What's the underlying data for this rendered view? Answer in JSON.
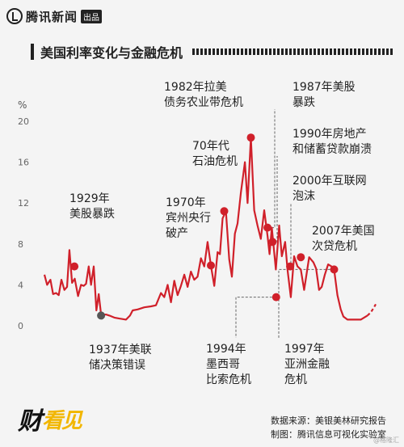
{
  "header": {
    "brand_name": "腾讯新闻",
    "brand_tag": "出品",
    "brand_icon": "tencent-news-logo-icon"
  },
  "chart_data": {
    "type": "line",
    "title": "美国利率变化与金融危机",
    "ylabel": "%",
    "ylim": [
      0,
      20
    ],
    "yticks": [
      0,
      4,
      8,
      12,
      16,
      20
    ],
    "grid": false,
    "line_color": "#d0202a",
    "marker_color": "#d0202a",
    "series": [
      {
        "values": [
          [
            1920,
            5.0
          ],
          [
            1920.8,
            4.0
          ],
          [
            1921.8,
            4.5
          ],
          [
            1922.6,
            3.1
          ],
          [
            1923.5,
            3.2
          ],
          [
            1924.3,
            3.0
          ],
          [
            1925.1,
            4.5
          ],
          [
            1926.0,
            3.5
          ],
          [
            1926.8,
            3.8
          ],
          [
            1927.5,
            7.4
          ],
          [
            1928.3,
            4.2
          ],
          [
            1929.1,
            4.6
          ],
          [
            1930.1,
            2.9
          ],
          [
            1931.0,
            4.0
          ],
          [
            1931.8,
            3.9
          ],
          [
            1932.5,
            4.1
          ],
          [
            1933.3,
            5.8
          ],
          [
            1934.0,
            4.0
          ],
          [
            1934.8,
            5.8
          ],
          [
            1935.6,
            1.5
          ],
          [
            1936.3,
            3.1
          ],
          [
            1937.0,
            1.1
          ],
          [
            1937.8,
            1.1
          ],
          [
            1938.5,
            1.1
          ],
          [
            1939.5,
            1.0
          ],
          [
            1941.0,
            0.8
          ],
          [
            1942.5,
            0.7
          ],
          [
            1944.5,
            0.6
          ],
          [
            1945.7,
            1.0
          ],
          [
            1946.5,
            1.5
          ],
          [
            1948.0,
            1.6
          ],
          [
            1950.0,
            1.8
          ],
          [
            1952.0,
            1.9
          ],
          [
            1953.5,
            2.0
          ],
          [
            1955.0,
            3.2
          ],
          [
            1956.0,
            2.8
          ],
          [
            1957.0,
            4.0
          ],
          [
            1958.0,
            2.3
          ],
          [
            1959.0,
            4.4
          ],
          [
            1960.0,
            3.0
          ],
          [
            1961.0,
            3.9
          ],
          [
            1962.0,
            5.0
          ],
          [
            1963.0,
            3.8
          ],
          [
            1964.0,
            5.3
          ],
          [
            1965.0,
            4.5
          ],
          [
            1966.0,
            4.8
          ],
          [
            1967.0,
            6.6
          ],
          [
            1968.0,
            5.8
          ],
          [
            1969.0,
            8.2
          ],
          [
            1970.0,
            5.9
          ],
          [
            1971.0,
            3.9
          ],
          [
            1972.0,
            7.2
          ],
          [
            1972.7,
            7.0
          ],
          [
            1973.5,
            10.5
          ],
          [
            1974.5,
            11.2
          ],
          [
            1975.5,
            6.5
          ],
          [
            1976.3,
            4.8
          ],
          [
            1977.2,
            9.0
          ],
          [
            1978.0,
            10.0
          ],
          [
            1979.0,
            13.0
          ],
          [
            1980.2,
            16.0
          ],
          [
            1981.0,
            12.0
          ],
          [
            1982.0,
            18.4
          ],
          [
            1983.0,
            11.3
          ],
          [
            1984.0,
            9.8
          ],
          [
            1985.0,
            8.5
          ],
          [
            1986.0,
            11.3
          ],
          [
            1987.0,
            8.8
          ],
          [
            1987.6,
            7.0
          ],
          [
            1988.3,
            9.6
          ],
          [
            1989.5,
            5.5
          ],
          [
            1990.5,
            9.8
          ],
          [
            1991.3,
            6.8
          ],
          [
            1992.3,
            8.2
          ],
          [
            1993.0,
            5.5
          ],
          [
            1994.0,
            2.8
          ],
          [
            1995.0,
            6.8
          ],
          [
            1996.0,
            5.8
          ],
          [
            1997.0,
            5.5
          ],
          [
            1998.0,
            3.5
          ],
          [
            1998.8,
            5.2
          ],
          [
            1999.5,
            6.7
          ],
          [
            2000.8,
            6.2
          ],
          [
            2001.6,
            5.6
          ],
          [
            2002.5,
            3.5
          ],
          [
            2003.3,
            3.8
          ],
          [
            2004.2,
            5.0
          ],
          [
            2005.2,
            6.0
          ],
          [
            2006.2,
            5.8
          ],
          [
            2007.0,
            5.5
          ],
          [
            2008.0,
            3.0
          ],
          [
            2009.0,
            1.6
          ],
          [
            2009.8,
            0.9
          ],
          [
            2011.0,
            0.6
          ],
          [
            2013.0,
            0.6
          ],
          [
            2015.0,
            0.6
          ],
          [
            2016.0,
            0.8
          ],
          [
            2017.0,
            1.0
          ]
        ]
      },
      {
        "style": "dashed",
        "values": [
          [
            2017.0,
            1.0
          ],
          [
            2018.0,
            1.3
          ],
          [
            2019.0,
            1.8
          ],
          [
            2019.5,
            2.1
          ]
        ]
      }
    ],
    "annotations": [
      {
        "year": 1929,
        "y": 5.8,
        "label": [
          "1929年",
          "美股暴跌"
        ],
        "color": "#d0202a"
      },
      {
        "year": 1937,
        "y": 1.0,
        "label": [
          "1937年美联",
          "储决策错误"
        ],
        "color": "#555555"
      },
      {
        "year": 1970,
        "y": 5.9,
        "label": [
          "1970年",
          "宾州央行",
          "破产"
        ],
        "color": "#d0202a"
      },
      {
        "year": 1974,
        "y": 11.2,
        "label": [
          "70年代",
          "石油危机"
        ],
        "color": "#d0202a"
      },
      {
        "year": 1982,
        "y": 18.4,
        "label": [
          "1982年拉美",
          "债务农业带危机"
        ],
        "color": "#d0202a"
      },
      {
        "year": 1987,
        "y": 9.6,
        "label": [
          "1987年美股",
          "暴跌"
        ],
        "color": "#d0202a"
      },
      {
        "year": 1988.5,
        "y": 8.2,
        "label": [
          "1990年房地产",
          "和储蓄贷款崩溃"
        ],
        "color": "#d0202a"
      },
      {
        "year": 1989.6,
        "y": 2.8,
        "label": [
          "1994年",
          "墨西哥",
          "比索危机"
        ],
        "color": "#d0202a"
      },
      {
        "year": 1993.8,
        "y": 5.8,
        "label": [
          "2000年互联网",
          "泡沫"
        ],
        "color": "#d0202a"
      },
      {
        "year": 1997,
        "y": 6.7,
        "label": [
          "2007年美国",
          "次贷危机"
        ],
        "color": "#d0202a"
      },
      {
        "year": 2007,
        "y": 5.5,
        "label": [
          "1997年",
          "亚洲金融",
          "危机"
        ],
        "color": "#d0202a"
      }
    ]
  },
  "footer": {
    "logo_part1": "财",
    "logo_part2": "看见",
    "source_line1": "数据来源：美银美林研究报告",
    "source_line2": "制图：腾讯信息可视化实验室",
    "corner_mark": "@格隆汇"
  }
}
